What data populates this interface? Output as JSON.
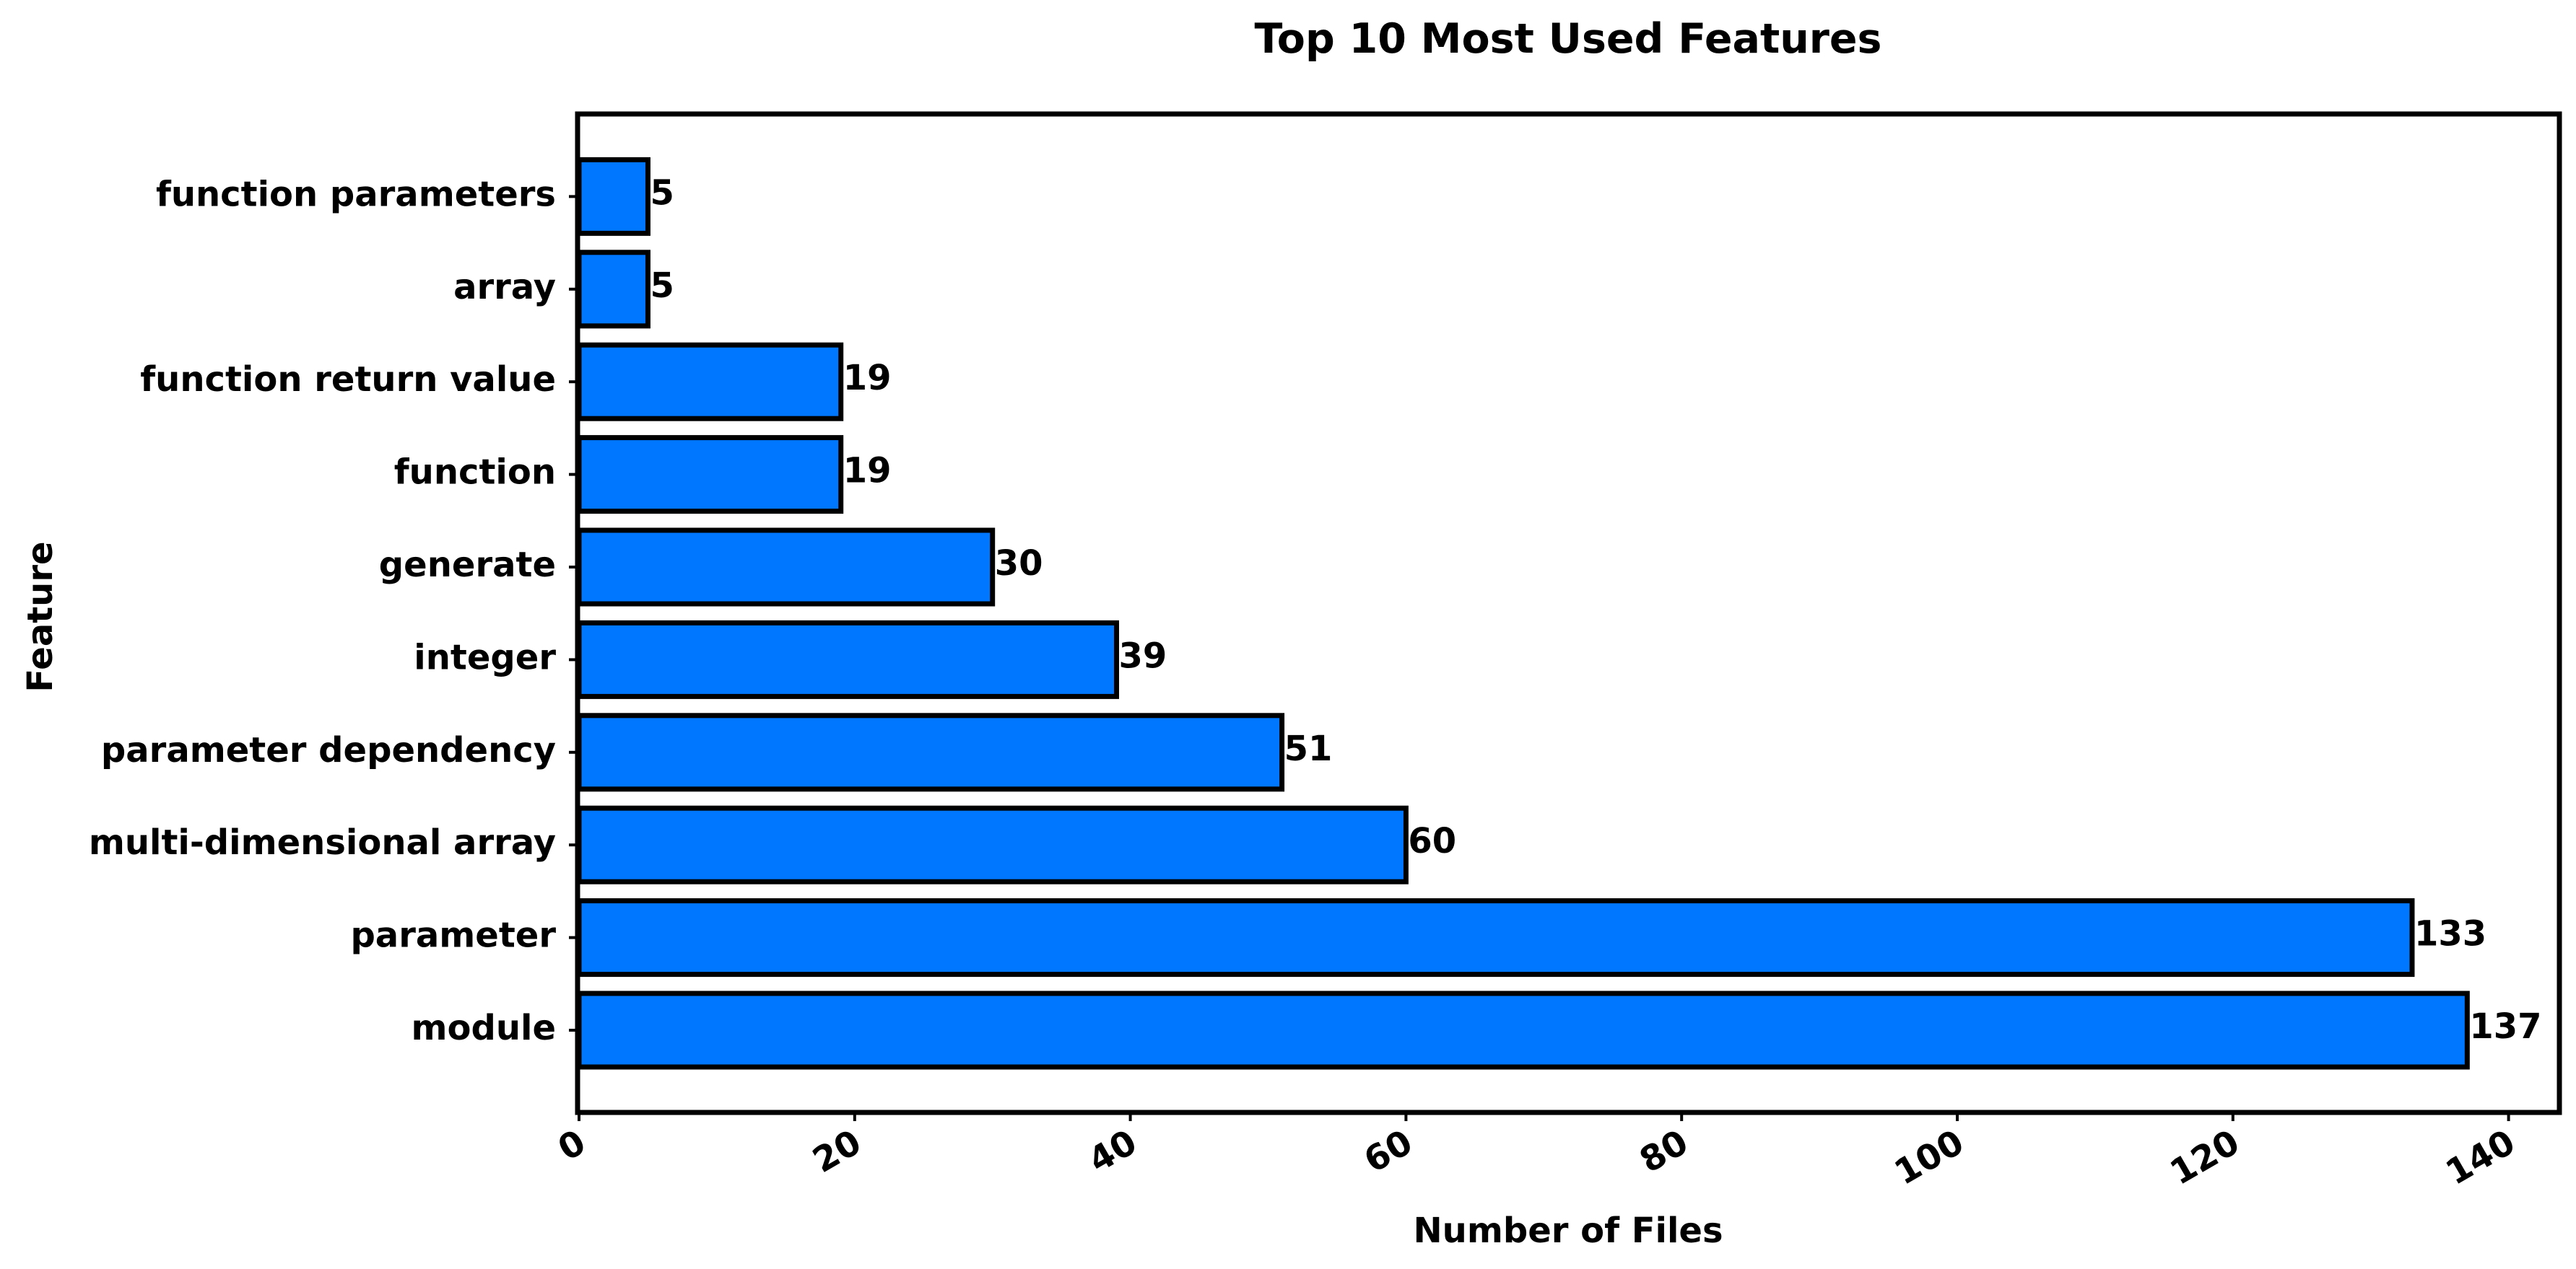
{
  "chart_data": {
    "type": "bar",
    "orientation": "horizontal",
    "title": "Top 10 Most Used Features",
    "xlabel": "Number of Files",
    "ylabel": "Feature",
    "categories": [
      "module",
      "parameter",
      "multi-dimensional array",
      "parameter dependency",
      "integer",
      "generate",
      "function",
      "function return value",
      "array",
      "function parameters"
    ],
    "values": [
      137,
      133,
      60,
      51,
      39,
      30,
      19,
      19,
      5,
      5
    ],
    "value_labels": [
      "137",
      "133",
      "60",
      "51",
      "39",
      "30",
      "19",
      "19",
      "5",
      "5"
    ],
    "xlim": [
      0,
      143.85
    ],
    "xticks": [
      0,
      20,
      40,
      60,
      80,
      100,
      120,
      140
    ],
    "xtick_labels": [
      "0",
      "20",
      "40",
      "60",
      "80",
      "100",
      "120",
      "140"
    ],
    "grid": false,
    "legend": "none",
    "colors": {
      "bar_fill": "#0077FF",
      "bar_edge": "#000000",
      "text": "#000000"
    }
  }
}
